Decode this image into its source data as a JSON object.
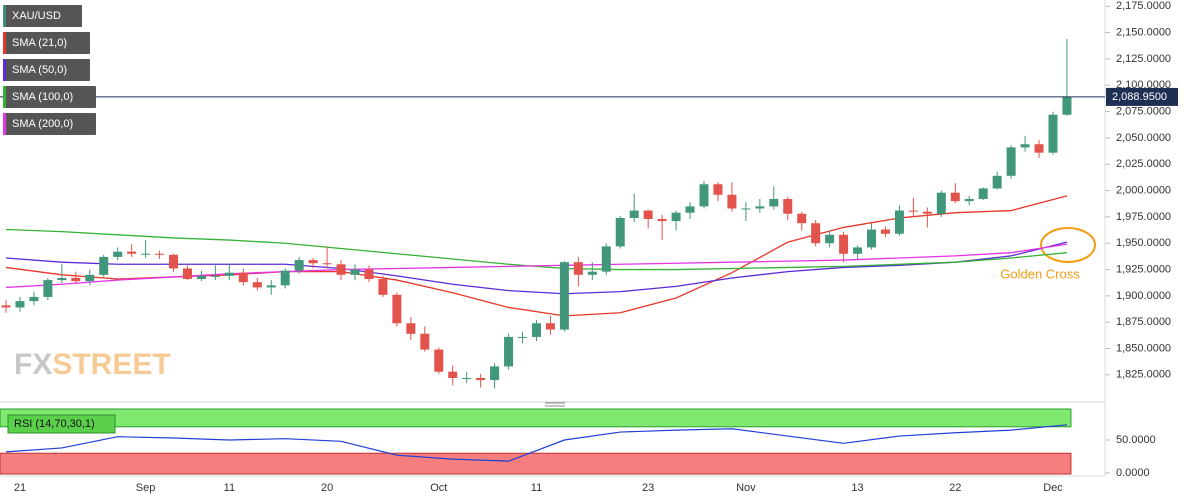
{
  "chart_data": {
    "type": "candlestick",
    "categories": [
      null,
      "21",
      null,
      null,
      null,
      null,
      null,
      null,
      null,
      null,
      "Sep",
      null,
      null,
      null,
      null,
      null,
      "11",
      null,
      null,
      null,
      null,
      null,
      null,
      "20",
      null,
      null,
      null,
      null,
      null,
      null,
      null,
      "Oct",
      null,
      null,
      null,
      null,
      null,
      null,
      "11",
      null,
      null,
      null,
      null,
      null,
      null,
      null,
      "23",
      null,
      null,
      null,
      null,
      null,
      null,
      "Nov",
      null,
      null,
      null,
      null,
      null,
      null,
      null,
      "13",
      null,
      null,
      null,
      null,
      null,
      null,
      "22",
      null,
      null,
      null,
      null,
      null,
      null,
      "Dec",
      null
    ],
    "series": [
      {
        "name": "XAU/USD",
        "type": "candlestick",
        "color": "#3d8f7a",
        "up_color": "#41977b",
        "down_color": "#e2534b",
        "open": [
          1891,
          1889,
          1895,
          1899,
          1915,
          1917,
          1914,
          1920,
          1937,
          1942,
          1940,
          1940,
          1939,
          1926,
          1916,
          1919,
          1919,
          1922,
          1913,
          1908,
          1910,
          1924,
          1934,
          1931,
          1930,
          1920,
          1925,
          1916,
          1901,
          1874,
          1864,
          1849,
          1828,
          1822,
          1822,
          1820,
          1833,
          1861,
          1861,
          1874,
          1868,
          1932,
          1920,
          1923,
          1947,
          1974,
          1981,
          1973,
          1971,
          1979,
          1985,
          2006,
          1996,
          1983,
          1983,
          1985,
          1992,
          1978,
          1969,
          1950,
          1958,
          1940,
          1946,
          1963,
          1959,
          1981,
          1980,
          1978,
          1998,
          1990,
          1992,
          2002,
          2014,
          2041,
          2044,
          2036,
          2072
        ],
        "high": [
          1896,
          1899,
          1904,
          1917,
          1930,
          1923,
          1925,
          1939,
          1946,
          1949,
          1953,
          1943,
          1940,
          1929,
          1924,
          1929,
          1930,
          1926,
          1917,
          1915,
          1926,
          1937,
          1936,
          1947,
          1934,
          1930,
          1929,
          1919,
          1903,
          1880,
          1871,
          1851,
          1834,
          1828,
          1826,
          1836,
          1864,
          1866,
          1877,
          1881,
          1933,
          1937,
          1932,
          1950,
          1976,
          1997,
          1982,
          1977,
          1981,
          1989,
          2009,
          2008,
          2008,
          1989,
          1992,
          2004,
          1994,
          1980,
          1972,
          1962,
          1961,
          1948,
          1969,
          1966,
          1986,
          1993,
          1984,
          2000,
          2007,
          1995,
          2003,
          2018,
          2043,
          2052,
          2048,
          2075,
          2144
        ],
        "low": [
          1884,
          1885,
          1891,
          1896,
          1912,
          1912,
          1910,
          1918,
          1934,
          1937,
          1936,
          1935,
          1923,
          1915,
          1914,
          1915,
          1915,
          1910,
          1905,
          1901,
          1907,
          1921,
          1926,
          1926,
          1915,
          1915,
          1913,
          1899,
          1871,
          1858,
          1847,
          1826,
          1815,
          1817,
          1813,
          1812,
          1830,
          1855,
          1857,
          1863,
          1866,
          1909,
          1915,
          1920,
          1945,
          1970,
          1964,
          1953,
          1962,
          1973,
          1983,
          1990,
          1980,
          1971,
          1979,
          1982,
          1972,
          1962,
          1947,
          1946,
          1932,
          1935,
          1944,
          1956,
          1957,
          1975,
          1965,
          1975,
          1988,
          1986,
          1991,
          2001,
          2011,
          2037,
          2031,
          2034,
          2071
        ],
        "close": [
          1889,
          1895,
          1899,
          1915,
          1917,
          1914,
          1920,
          1937,
          1942,
          1940,
          1940,
          1939,
          1926,
          1916,
          1919,
          1919,
          1922,
          1913,
          1908,
          1910,
          1924,
          1934,
          1931,
          1930,
          1920,
          1925,
          1916,
          1901,
          1874,
          1864,
          1849,
          1828,
          1822,
          1822,
          1820,
          1833,
          1861,
          1861,
          1874,
          1868,
          1932,
          1920,
          1923,
          1947,
          1974,
          1981,
          1973,
          1971,
          1979,
          1985,
          2006,
          1996,
          1983,
          1983,
          1985,
          1992,
          1978,
          1969,
          1950,
          1958,
          1940,
          1946,
          1963,
          1959,
          1981,
          1980,
          1978,
          1998,
          1990,
          1992,
          2002,
          2014,
          2041,
          2044,
          2036,
          2072,
          2089
        ]
      },
      {
        "name": "SMA (21,0)",
        "type": "line",
        "color": "#e8372a",
        "x": [
          0,
          4,
          8,
          12,
          16,
          20,
          24,
          28,
          32,
          36,
          40,
          44,
          48,
          52,
          56,
          60,
          64,
          68,
          72,
          76
        ],
        "values": [
          1927,
          1920,
          1916,
          1918,
          1920,
          1923,
          1923,
          1915,
          1903,
          1889,
          1881,
          1884,
          1898,
          1922,
          1951,
          1965,
          1974,
          1979,
          1981,
          1995
        ]
      },
      {
        "name": "SMA (50,0)",
        "type": "line",
        "color": "#5b2bd6",
        "x": [
          0,
          4,
          8,
          12,
          16,
          20,
          24,
          28,
          32,
          36,
          40,
          44,
          48,
          52,
          56,
          60,
          64,
          68,
          72,
          76
        ],
        "values": [
          1936,
          1932,
          1930,
          1930,
          1930,
          1930,
          1926,
          1919,
          1911,
          1905,
          1902,
          1904,
          1909,
          1917,
          1923,
          1927,
          1929,
          1932,
          1938,
          1951
        ]
      },
      {
        "name": "SMA (100,0)",
        "type": "line",
        "color": "#33b233",
        "x": [
          0,
          4,
          8,
          12,
          16,
          20,
          24,
          28,
          32,
          36,
          40,
          44,
          48,
          52,
          56,
          60,
          64,
          68,
          72,
          76
        ],
        "values": [
          1963,
          1961,
          1958,
          1955,
          1953,
          1950,
          1945,
          1940,
          1935,
          1930,
          1926,
          1925,
          1925,
          1926,
          1927,
          1928,
          1930,
          1932,
          1936,
          1941
        ]
      },
      {
        "name": "SMA (200,0)",
        "type": "line",
        "color": "#e534e5",
        "x": [
          0,
          4,
          8,
          12,
          16,
          20,
          24,
          28,
          32,
          36,
          40,
          44,
          48,
          52,
          56,
          60,
          64,
          68,
          72,
          76
        ],
        "values": [
          1908,
          1911,
          1915,
          1918,
          1921,
          1923,
          1925,
          1926,
          1927,
          1928,
          1929,
          1930,
          1931,
          1932,
          1933,
          1934,
          1936,
          1938,
          1941,
          1949
        ]
      }
    ],
    "ylim": [
      1803,
      2181
    ],
    "yticks": [
      {
        "value": 2175,
        "label": "2,175.0000"
      },
      {
        "value": 2150,
        "label": "2,150.0000"
      },
      {
        "value": 2125,
        "label": "2,125.0000"
      },
      {
        "value": 2100,
        "label": "2,100.0000"
      },
      {
        "value": 2075,
        "label": "2,075.0000"
      },
      {
        "value": 2050,
        "label": "2,050.0000"
      },
      {
        "value": 2025,
        "label": "2,025.0000"
      },
      {
        "value": 2000,
        "label": "2,000.0000"
      },
      {
        "value": 1975,
        "label": "1,975.0000"
      },
      {
        "value": 1950,
        "label": "1,950.0000"
      },
      {
        "value": 1925,
        "label": "1,925.0000"
      },
      {
        "value": 1900,
        "label": "1,900.0000"
      },
      {
        "value": 1875,
        "label": "1,875.0000"
      },
      {
        "value": 1850,
        "label": "1,850.0000"
      },
      {
        "value": 1825,
        "label": "1,825.0000"
      }
    ],
    "last_price": {
      "value": 2088.95,
      "label": "2,088.9500",
      "color": "#1e2f54"
    },
    "annotation": "Golden Cross",
    "watermark": {
      "prefix": "FX",
      "suffix": "STREET"
    },
    "rsi": {
      "name": "RSI (14,70,30,1)",
      "color": "#1f3fd6",
      "x": [
        0,
        4,
        8,
        12,
        16,
        20,
        24,
        28,
        32,
        36,
        40,
        44,
        48,
        52,
        56,
        60,
        64,
        68,
        72,
        76
      ],
      "values": [
        32,
        38,
        55,
        53,
        50,
        52,
        48,
        27,
        21,
        18,
        50,
        62,
        65,
        67,
        56,
        45,
        56,
        61,
        65,
        73
      ],
      "overbought": 70,
      "oversold": 30,
      "ylim": [
        -4.5,
        101.5
      ],
      "yticks": [
        {
          "value": 50,
          "label": "50.0000"
        },
        {
          "value": 0,
          "label": "0.0000"
        }
      ]
    }
  }
}
